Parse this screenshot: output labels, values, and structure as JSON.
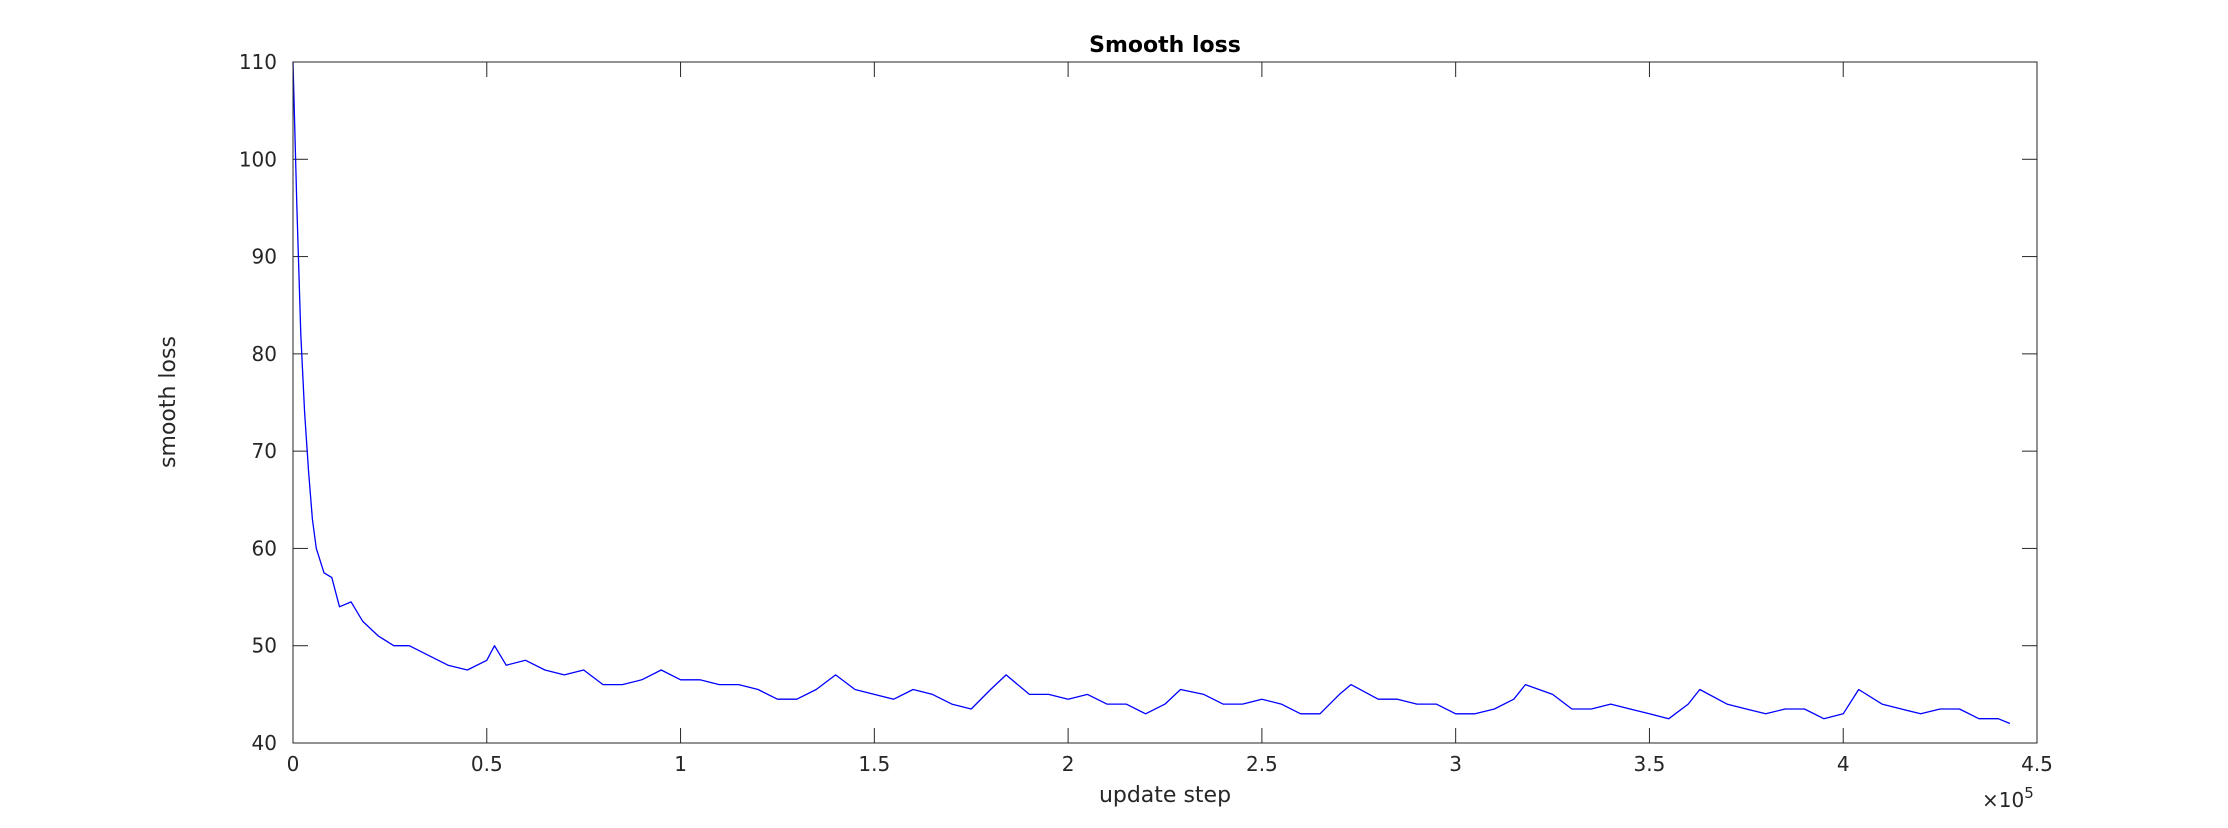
{
  "chart_data": {
    "type": "line",
    "title": "Smooth loss",
    "xlabel": "update step",
    "ylabel": "smooth loss",
    "xlim": [
      0,
      450000
    ],
    "ylim": [
      40,
      110
    ],
    "x_ticks": [
      0,
      50000,
      100000,
      150000,
      200000,
      250000,
      300000,
      350000,
      400000,
      450000
    ],
    "x_tick_labels": [
      "0",
      "0.5",
      "1",
      "1.5",
      "2",
      "2.5",
      "3",
      "3.5",
      "4",
      "4.5"
    ],
    "x_multiplier": "×10",
    "x_multiplier_exponent": "5",
    "y_ticks": [
      40,
      50,
      60,
      70,
      80,
      90,
      100,
      110
    ],
    "y_tick_labels": [
      "40",
      "50",
      "60",
      "70",
      "80",
      "90",
      "100",
      "110"
    ],
    "grid": false,
    "line_color": "#0000ff",
    "series": [
      {
        "x": [
          0,
          1000,
          2000,
          3000,
          4000,
          5000,
          6000,
          8000,
          10000,
          12000,
          15000,
          18000,
          22000,
          26000,
          30000,
          35000,
          40000,
          45000,
          50000,
          52000,
          55000,
          60000,
          65000,
          70000,
          75000,
          80000,
          85000,
          90000,
          95000,
          100000,
          105000,
          110000,
          115000,
          120000,
          125000,
          130000,
          135000,
          140000,
          145000,
          150000,
          155000,
          160000,
          165000,
          170000,
          175000,
          180000,
          184000,
          190000,
          195000,
          200000,
          205000,
          210000,
          215000,
          220000,
          225000,
          229000,
          235000,
          240000,
          245000,
          250000,
          255000,
          260000,
          265000,
          270000,
          273000,
          280000,
          285000,
          290000,
          295000,
          300000,
          305000,
          310000,
          315000,
          318000,
          325000,
          330000,
          335000,
          340000,
          345000,
          350000,
          355000,
          360000,
          363000,
          370000,
          375000,
          380000,
          385000,
          390000,
          395000,
          400000,
          404000,
          410000,
          415000,
          420000,
          425000,
          430000,
          435000,
          440000,
          443000
        ],
        "y": [
          110,
          95,
          82,
          74,
          68,
          63,
          60,
          57.5,
          57,
          54,
          54.5,
          52.5,
          51,
          50,
          50,
          49,
          48,
          47.5,
          48.5,
          50,
          48,
          48.5,
          47.5,
          47,
          47.5,
          46,
          46,
          46.5,
          47.5,
          46.5,
          46.5,
          46,
          46,
          45.5,
          44.5,
          44.5,
          45.5,
          47,
          45.5,
          45,
          44.5,
          45.5,
          45,
          44,
          43.5,
          45.5,
          47,
          45,
          45,
          44.5,
          45,
          44,
          44,
          43,
          44,
          45.5,
          45,
          44,
          44,
          44.5,
          44,
          43,
          43,
          45,
          46,
          44.5,
          44.5,
          44,
          44,
          43,
          43,
          43.5,
          44.5,
          46,
          45,
          43.5,
          43.5,
          44,
          43.5,
          43,
          42.5,
          44,
          45.5,
          44,
          43.5,
          43,
          43.5,
          43.5,
          42.5,
          43,
          45.5,
          44,
          43.5,
          43,
          43.5,
          43.5,
          42.5,
          42.5,
          42
        ]
      }
    ]
  }
}
